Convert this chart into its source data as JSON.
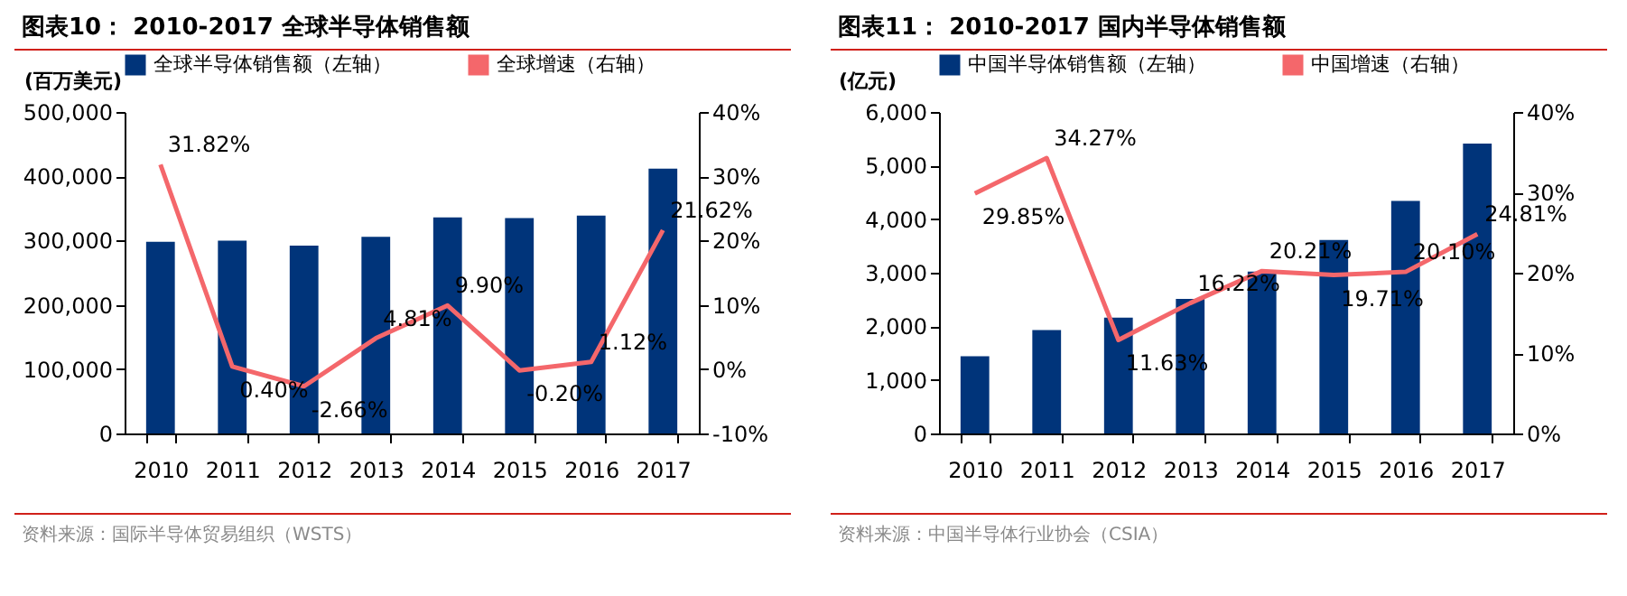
{
  "chart_data": [
    {
      "type": "bar",
      "title": "图表10：  2010-2017 全球半导体销售额",
      "ylabel": "(百万美元)",
      "categories": [
        "2010",
        "2011",
        "2012",
        "2013",
        "2014",
        "2015",
        "2016",
        "2017"
      ],
      "series": [
        {
          "name": "全球半导体销售额（左轴）",
          "color": "#00347a",
          "values": [
            298000,
            300000,
            292000,
            306000,
            336000,
            335000,
            339000,
            412000
          ]
        },
        {
          "name": "全球增速（右轴）",
          "type": "line",
          "axis": "y2",
          "color": "#f4676b",
          "values": [
            31.82,
            0.4,
            -2.66,
            4.81,
            9.9,
            -0.2,
            1.12,
            21.62
          ],
          "value_labels": [
            "31.82%",
            "0.40%",
            "-2.66%",
            "4.81%",
            "9.90%",
            "-0.20%",
            "1.12%",
            "21.62%"
          ]
        }
      ],
      "ylim": [
        0,
        500000
      ],
      "yticks": [
        {
          "value": 0,
          "label": "0"
        },
        {
          "value": 100000,
          "label": "100,000"
        },
        {
          "value": 200000,
          "label": "200,000"
        },
        {
          "value": 300000,
          "label": "300,000"
        },
        {
          "value": 400000,
          "label": "400,000"
        },
        {
          "value": 500000,
          "label": "500,000"
        }
      ],
      "y2lim": [
        -10,
        40
      ],
      "y2ticks": [
        {
          "value": -10,
          "label": "-10%"
        },
        {
          "value": 0,
          "label": "0%"
        },
        {
          "value": 10,
          "label": "10%"
        },
        {
          "value": 20,
          "label": "20%"
        },
        {
          "value": 30,
          "label": "30%"
        },
        {
          "value": 40,
          "label": "40%"
        }
      ],
      "grid": false,
      "legend": "top",
      "annotations": [
        "资料来源：国际半导体贸易组织（WSTS）"
      ]
    },
    {
      "type": "bar",
      "title": "图表11：  2010-2017 国内半导体销售额",
      "ylabel": "(亿元)",
      "categories": [
        "2010",
        "2011",
        "2012",
        "2013",
        "2014",
        "2015",
        "2016",
        "2017"
      ],
      "series": [
        {
          "name": "中国半导体销售额（左轴）",
          "color": "#00347a",
          "values": [
            1440,
            1930,
            2160,
            2510,
            3020,
            3610,
            4340,
            5410
          ]
        },
        {
          "name": "中国增速（右轴）",
          "type": "line",
          "axis": "y2",
          "color": "#f4676b",
          "values": [
            29.85,
            34.27,
            11.63,
            16.22,
            20.21,
            19.71,
            20.1,
            24.81
          ],
          "value_labels": [
            "29.85%",
            "34.27%",
            "11.63%",
            "16.22%",
            "20.21%",
            "19.71%",
            "20.10%",
            "24.81%"
          ]
        }
      ],
      "ylim": [
        0,
        6000
      ],
      "yticks": [
        {
          "value": 0,
          "label": "0"
        },
        {
          "value": 1000,
          "label": "1,000"
        },
        {
          "value": 2000,
          "label": "2,000"
        },
        {
          "value": 3000,
          "label": "3,000"
        },
        {
          "value": 4000,
          "label": "4,000"
        },
        {
          "value": 5000,
          "label": "5,000"
        },
        {
          "value": 6000,
          "label": "6,000"
        }
      ],
      "y2lim": [
        0,
        40
      ],
      "y2ticks": [
        {
          "value": 0,
          "label": "0%"
        },
        {
          "value": 10,
          "label": "10%"
        },
        {
          "value": 20,
          "label": "20%"
        },
        {
          "value": 30,
          "label": "30%"
        },
        {
          "value": 40,
          "label": "40%"
        }
      ],
      "grid": false,
      "legend": "top",
      "annotations": [
        "资料来源：中国半导体行业协会（CSIA）"
      ]
    }
  ]
}
